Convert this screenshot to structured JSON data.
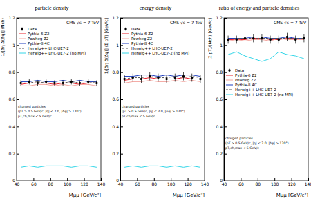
{
  "chart_data": [
    {
      "type": "line",
      "title": "particle density",
      "x_label": "Mμμ [GeV/c²]",
      "y_label": "1/[Δη Δ(Δφ)] ⟨Nch⟩",
      "x": [
        45,
        55,
        65,
        75,
        85,
        95,
        105,
        115,
        125,
        135
      ],
      "xlim": [
        40,
        140
      ],
      "xticks": [
        40,
        60,
        80,
        100,
        120,
        140
      ],
      "ylim": [
        0,
        1.2
      ],
      "yticks": [
        0,
        0.2,
        0.4,
        0.6,
        0.8,
        1,
        1.2
      ],
      "legend": "top-left",
      "annotations": [
        "CMS  √s = 7 TeV",
        "charged particles",
        "(pT > 0.5 GeV/c, |η| < 2.0, |Δφ| > 120°)",
        "pT,ch,max < 5 GeV/c"
      ],
      "series": [
        {
          "name": "Data",
          "type": "scatter",
          "color": "#000000",
          "marker": "circle",
          "values": [
            0.72,
            0.73,
            0.72,
            0.73,
            0.72,
            0.72,
            0.73,
            0.72,
            0.73,
            0.72
          ],
          "errors": [
            0.02,
            0.02,
            0.02,
            0.02,
            0.02,
            0.02,
            0.02,
            0.02,
            0.02,
            0.02
          ]
        },
        {
          "name": "Pythia-6 Z2",
          "type": "line",
          "color": "#e8202a",
          "line_style": "solid",
          "values": [
            0.71,
            0.72,
            0.72,
            0.72,
            0.71,
            0.72,
            0.72,
            0.71,
            0.72,
            0.72
          ]
        },
        {
          "name": "Powheg Z2",
          "type": "line",
          "color": "#f4a6a0",
          "line_style": "solid",
          "values": [
            0.7,
            0.7,
            0.71,
            0.71,
            0.7,
            0.71,
            0.7,
            0.71,
            0.71,
            0.7
          ]
        },
        {
          "name": "Pythia-8 4C",
          "type": "line",
          "color": "#1f3fbf",
          "line_style": "solid",
          "values": [
            0.73,
            0.73,
            0.74,
            0.73,
            0.73,
            0.74,
            0.73,
            0.74,
            0.73,
            0.73
          ]
        },
        {
          "name": "Herwig++ LHC-UE7-2",
          "type": "line",
          "color": "#555555",
          "line_style": "dashed",
          "values": [
            0.72,
            0.72,
            0.73,
            0.72,
            0.72,
            0.72,
            0.73,
            0.72,
            0.72,
            0.73
          ]
        },
        {
          "name": "Herwig++ LHC-UE7-2 (no MPI)",
          "type": "line",
          "color": "#33d6e8",
          "line_style": "solid",
          "values": [
            0.1,
            0.11,
            0.1,
            0.11,
            0.11,
            0.11,
            0.1,
            0.11,
            0.11,
            0.1
          ]
        }
      ]
    },
    {
      "type": "line",
      "title": "energy density",
      "x_label": "Mμμ [GeV/c²]",
      "y_label": "1/[Δη Δ(Δφ)] ⟨Σ pT⟩ [GeV/c]",
      "x": [
        45,
        55,
        65,
        75,
        85,
        95,
        105,
        115,
        125,
        135
      ],
      "xlim": [
        40,
        140
      ],
      "xticks": [
        40,
        60,
        80,
        100,
        120,
        140
      ],
      "ylim": [
        0,
        1.2
      ],
      "yticks": [
        0,
        0.2,
        0.4,
        0.6,
        0.8,
        1,
        1.2
      ],
      "legend": "top-left",
      "annotations": [
        "CMS  √s = 7 TeV",
        "charged particles",
        "(pT > 0.5 GeV/c, |η| < 2.0, |Δφ| > 120°)",
        "pT,ch,max < 5 GeV/c"
      ],
      "series": [
        {
          "name": "Data",
          "type": "scatter",
          "color": "#000000",
          "marker": "circle",
          "values": [
            0.75,
            0.76,
            0.75,
            0.77,
            0.76,
            0.75,
            0.76,
            0.77,
            0.76,
            0.75
          ],
          "errors": [
            0.03,
            0.03,
            0.03,
            0.03,
            0.03,
            0.03,
            0.03,
            0.03,
            0.03,
            0.03
          ]
        },
        {
          "name": "Pythia-6 Z2",
          "type": "line",
          "color": "#e8202a",
          "line_style": "solid",
          "values": [
            0.74,
            0.75,
            0.75,
            0.76,
            0.75,
            0.75,
            0.75,
            0.76,
            0.75,
            0.75
          ]
        },
        {
          "name": "Powheg Z2",
          "type": "line",
          "color": "#f4a6a0",
          "line_style": "solid",
          "values": [
            0.72,
            0.73,
            0.73,
            0.74,
            0.73,
            0.73,
            0.74,
            0.73,
            0.74,
            0.73
          ]
        },
        {
          "name": "Pythia-8 4C",
          "type": "line",
          "color": "#1f3fbf",
          "line_style": "solid",
          "values": [
            0.77,
            0.77,
            0.78,
            0.78,
            0.77,
            0.78,
            0.77,
            0.78,
            0.78,
            0.77
          ]
        },
        {
          "name": "Herwig++ LHC-UE7-2",
          "type": "line",
          "color": "#555555",
          "line_style": "dashed",
          "values": [
            0.75,
            0.76,
            0.76,
            0.77,
            0.76,
            0.76,
            0.77,
            0.76,
            0.77,
            0.76
          ]
        },
        {
          "name": "Herwig++ LHC-UE7-2 (no MPI)",
          "type": "line",
          "color": "#33d6e8",
          "line_style": "solid",
          "values": [
            0.1,
            0.11,
            0.1,
            0.11,
            0.11,
            0.1,
            0.11,
            0.1,
            0.11,
            0.1
          ]
        }
      ]
    },
    {
      "type": "line",
      "title": "ratio of energy and particle densities",
      "x_label": "Mμμ [GeV/c²]",
      "y_label": "⟨Σ pT⟩/⟨Nch⟩ [GeV/c]",
      "x": [
        45,
        55,
        65,
        75,
        85,
        95,
        105,
        115,
        125,
        135
      ],
      "xlim": [
        40,
        140
      ],
      "xticks": [
        40,
        60,
        80,
        100,
        120,
        140
      ],
      "ylim": [
        0,
        1.2
      ],
      "yticks": [
        0,
        0.2,
        0.4,
        0.6,
        0.8,
        1,
        1.2
      ],
      "legend": "middle-left",
      "annotations": [
        "CMS  √s = 7 TeV",
        "charged particles",
        "(pT > 0.5 GeV/c, |η| < 2.0, |Δφ| > 120°)",
        "pT,ch,max < 5 GeV/c"
      ],
      "series": [
        {
          "name": "Data",
          "type": "scatter",
          "color": "#000000",
          "marker": "circle",
          "values": [
            1.04,
            1.04,
            1.05,
            1.05,
            1.05,
            1.04,
            1.04,
            1.06,
            1.04,
            1.05
          ],
          "errors": [
            0.03,
            0.03,
            0.03,
            0.03,
            0.03,
            0.03,
            0.03,
            0.03,
            0.03,
            0.03
          ]
        },
        {
          "name": "Pythia-6 Z2",
          "type": "line",
          "color": "#e8202a",
          "line_style": "solid",
          "values": [
            1.04,
            1.04,
            1.04,
            1.05,
            1.05,
            1.04,
            1.04,
            1.05,
            1.05,
            1.04
          ]
        },
        {
          "name": "Powheg Z2",
          "type": "line",
          "color": "#f4a6a0",
          "line_style": "solid",
          "values": [
            1.03,
            1.04,
            1.03,
            1.04,
            1.04,
            1.03,
            1.05,
            1.04,
            1.04,
            1.04
          ]
        },
        {
          "name": "Pythia-8 4C",
          "type": "line",
          "color": "#1f3fbf",
          "line_style": "solid",
          "values": [
            1.05,
            1.05,
            1.05,
            1.06,
            1.06,
            1.05,
            1.05,
            1.06,
            1.05,
            1.05
          ]
        },
        {
          "name": "Herwig++ LHC-UE7-2",
          "type": "line",
          "color": "#555555",
          "line_style": "dashed",
          "values": [
            1.04,
            1.05,
            1.05,
            1.05,
            1.05,
            1.05,
            1.05,
            1.05,
            1.05,
            1.05
          ]
        },
        {
          "name": "Herwig++ LHC-UE7-2 (no MPI)",
          "type": "line",
          "color": "#33d6e8",
          "line_style": "solid",
          "values": [
            0.93,
            0.95,
            0.92,
            0.9,
            0.88,
            0.9,
            0.95,
            0.93,
            0.92,
            0.9
          ]
        }
      ]
    }
  ]
}
